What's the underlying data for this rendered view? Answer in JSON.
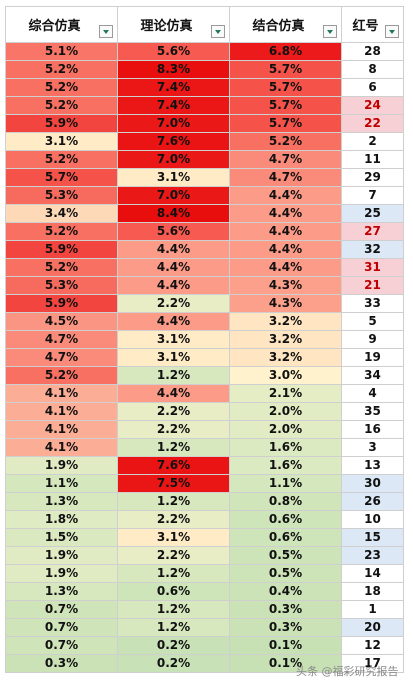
{
  "headers": [
    "综合仿真",
    "理论仿真",
    "结合仿真",
    "红号"
  ],
  "colors": {
    "hl_blue": "#dce8f5",
    "hl_pink": "#f6d0d5",
    "red_text": "#c00000"
  },
  "rows": [
    [
      "5.1%",
      "5.6%",
      "6.8%",
      "28"
    ],
    [
      "5.2%",
      "8.3%",
      "5.7%",
      "8"
    ],
    [
      "5.2%",
      "7.4%",
      "5.7%",
      "6"
    ],
    [
      "5.2%",
      "7.4%",
      "5.7%",
      "24"
    ],
    [
      "5.9%",
      "7.0%",
      "5.7%",
      "22"
    ],
    [
      "3.1%",
      "7.6%",
      "5.2%",
      "2"
    ],
    [
      "5.2%",
      "7.0%",
      "4.7%",
      "11"
    ],
    [
      "5.7%",
      "3.1%",
      "4.7%",
      "29"
    ],
    [
      "5.3%",
      "7.0%",
      "4.4%",
      "7"
    ],
    [
      "3.4%",
      "8.4%",
      "4.4%",
      "25"
    ],
    [
      "5.2%",
      "5.6%",
      "4.4%",
      "27"
    ],
    [
      "5.9%",
      "4.4%",
      "4.4%",
      "32"
    ],
    [
      "5.2%",
      "4.4%",
      "4.4%",
      "31"
    ],
    [
      "5.3%",
      "4.4%",
      "4.3%",
      "21"
    ],
    [
      "5.9%",
      "2.2%",
      "4.3%",
      "33"
    ],
    [
      "4.5%",
      "4.4%",
      "3.2%",
      "5"
    ],
    [
      "4.7%",
      "3.1%",
      "3.2%",
      "9"
    ],
    [
      "4.7%",
      "3.1%",
      "3.2%",
      "19"
    ],
    [
      "5.2%",
      "1.2%",
      "3.0%",
      "34"
    ],
    [
      "4.1%",
      "4.4%",
      "2.1%",
      "4"
    ],
    [
      "4.1%",
      "2.2%",
      "2.0%",
      "35"
    ],
    [
      "4.1%",
      "2.2%",
      "2.0%",
      "16"
    ],
    [
      "4.1%",
      "1.2%",
      "1.6%",
      "3"
    ],
    [
      "1.9%",
      "7.6%",
      "1.6%",
      "13"
    ],
    [
      "1.1%",
      "7.5%",
      "1.1%",
      "30"
    ],
    [
      "1.3%",
      "1.2%",
      "0.8%",
      "26"
    ],
    [
      "1.8%",
      "2.2%",
      "0.6%",
      "10"
    ],
    [
      "1.5%",
      "3.1%",
      "0.6%",
      "15"
    ],
    [
      "1.9%",
      "2.2%",
      "0.5%",
      "23"
    ],
    [
      "1.9%",
      "1.2%",
      "0.5%",
      "14"
    ],
    [
      "1.3%",
      "0.6%",
      "0.4%",
      "18"
    ],
    [
      "0.7%",
      "1.2%",
      "0.3%",
      "1"
    ],
    [
      "0.7%",
      "1.2%",
      "0.3%",
      "20"
    ],
    [
      "0.7%",
      "0.2%",
      "0.1%",
      "12"
    ],
    [
      "0.3%",
      "0.2%",
      "0.1%",
      "17"
    ]
  ],
  "red_number_styles": {
    "24": "pink",
    "22": "pink",
    "27": "pink",
    "31": "pink",
    "21": "pink",
    "25": "blue",
    "32": "blue",
    "30": "blue",
    "26": "blue",
    "15": "blue",
    "23": "blue",
    "20": "blue"
  },
  "watermark": "头条 @福彩研究报告"
}
